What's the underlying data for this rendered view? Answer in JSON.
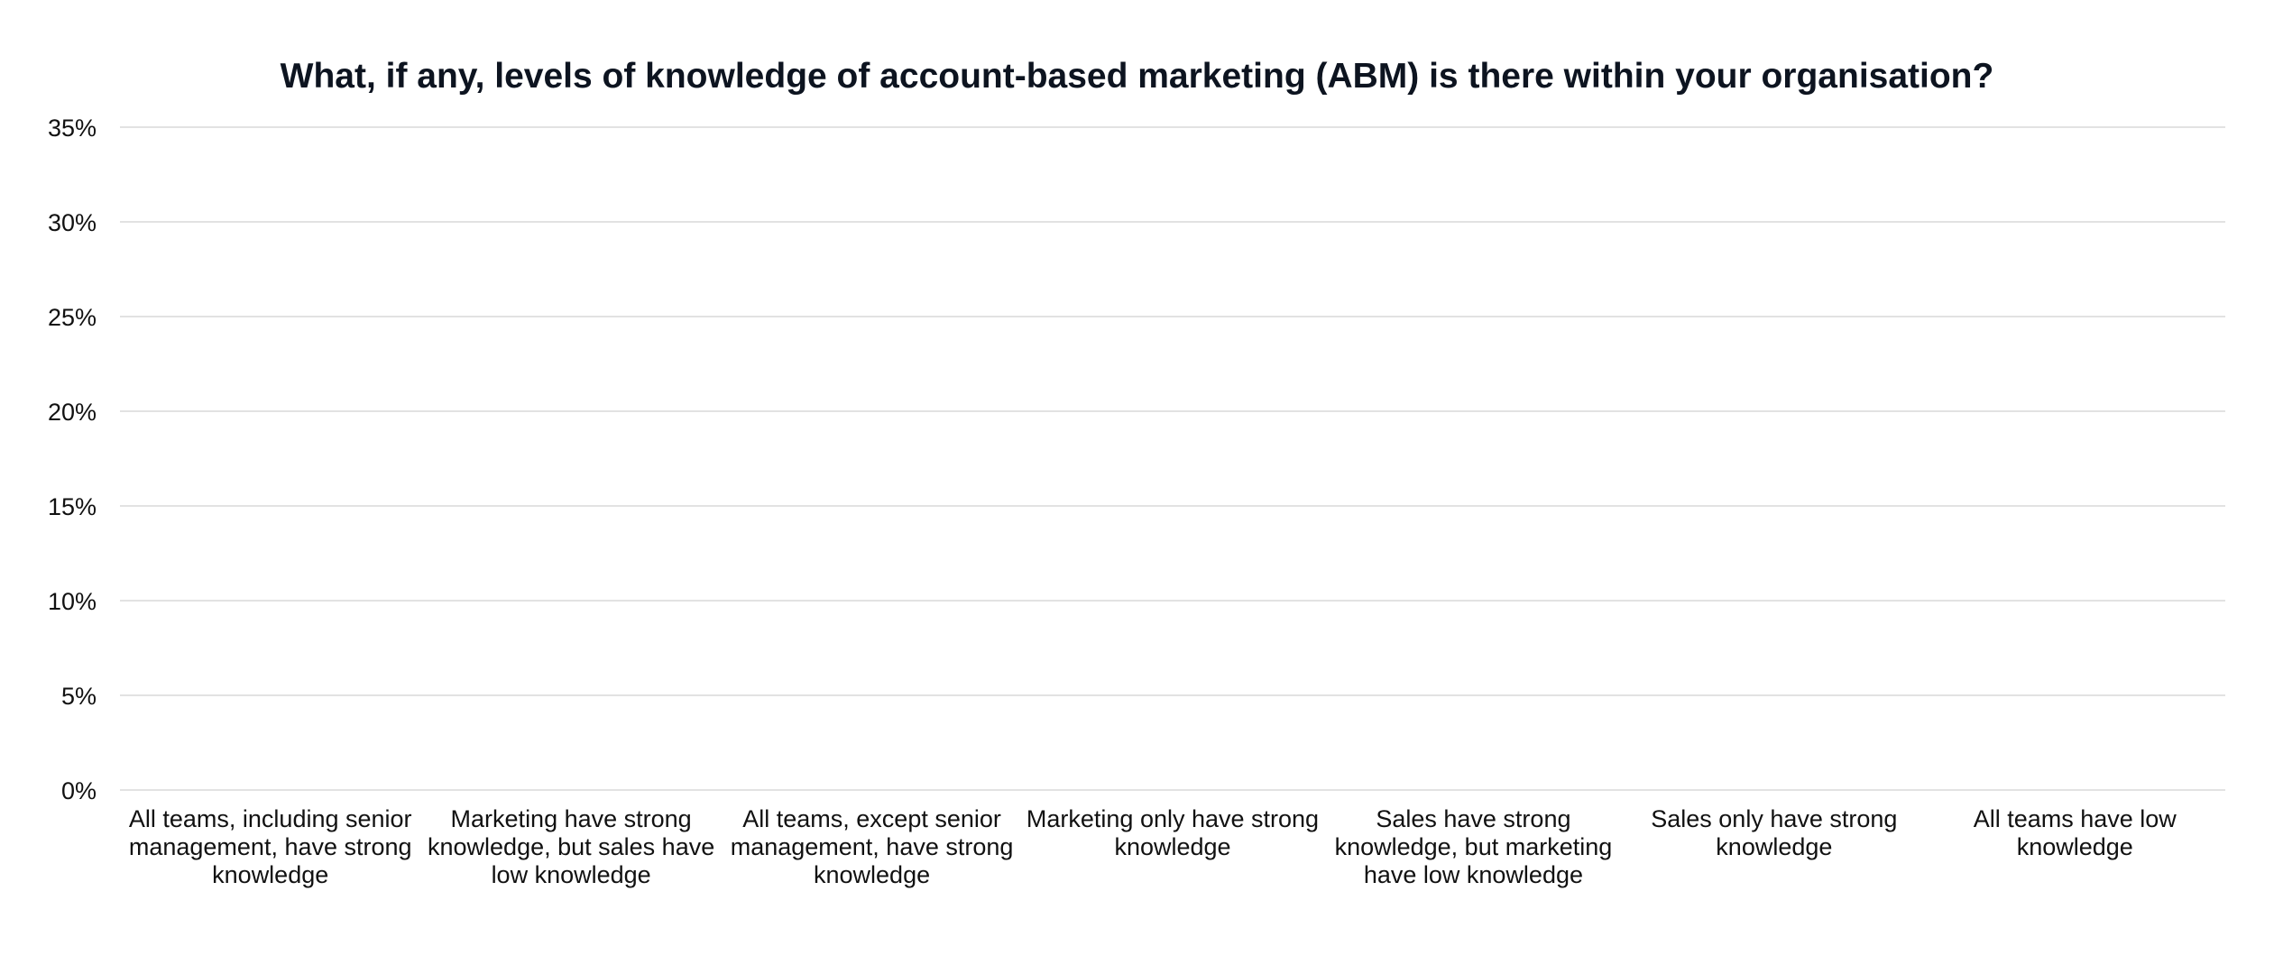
{
  "chart_data": {
    "type": "bar",
    "title": "What, if any, levels of knowledge of account-based marketing (ABM) is there within your organisation?",
    "xlabel": "",
    "ylabel": "",
    "categories": [
      "All teams, including senior management, have strong knowledge",
      "Marketing have strong knowledge, but sales have low knowledge",
      "All teams, except senior management, have strong knowledge",
      "Marketing only have strong knowledge",
      "Sales have strong knowledge, but marketing have low knowledge",
      "Sales only have strong knowledge",
      "All teams have low knowledge"
    ],
    "values": [
      null,
      null,
      null,
      null,
      null,
      null,
      null
    ],
    "ylim": [
      0,
      35
    ],
    "y_ticks": [
      0,
      5,
      10,
      15,
      20,
      25,
      30,
      35
    ],
    "y_tick_labels": [
      "0%",
      "5%",
      "10%",
      "15%",
      "20%",
      "25%",
      "30%",
      "35%"
    ],
    "y_format": "percent",
    "grid": true,
    "legend": "none",
    "colors": {
      "grid": "#d9d9d9",
      "title": "#0d1420",
      "text": "#111111",
      "bar": "#1f4e79"
    }
  }
}
